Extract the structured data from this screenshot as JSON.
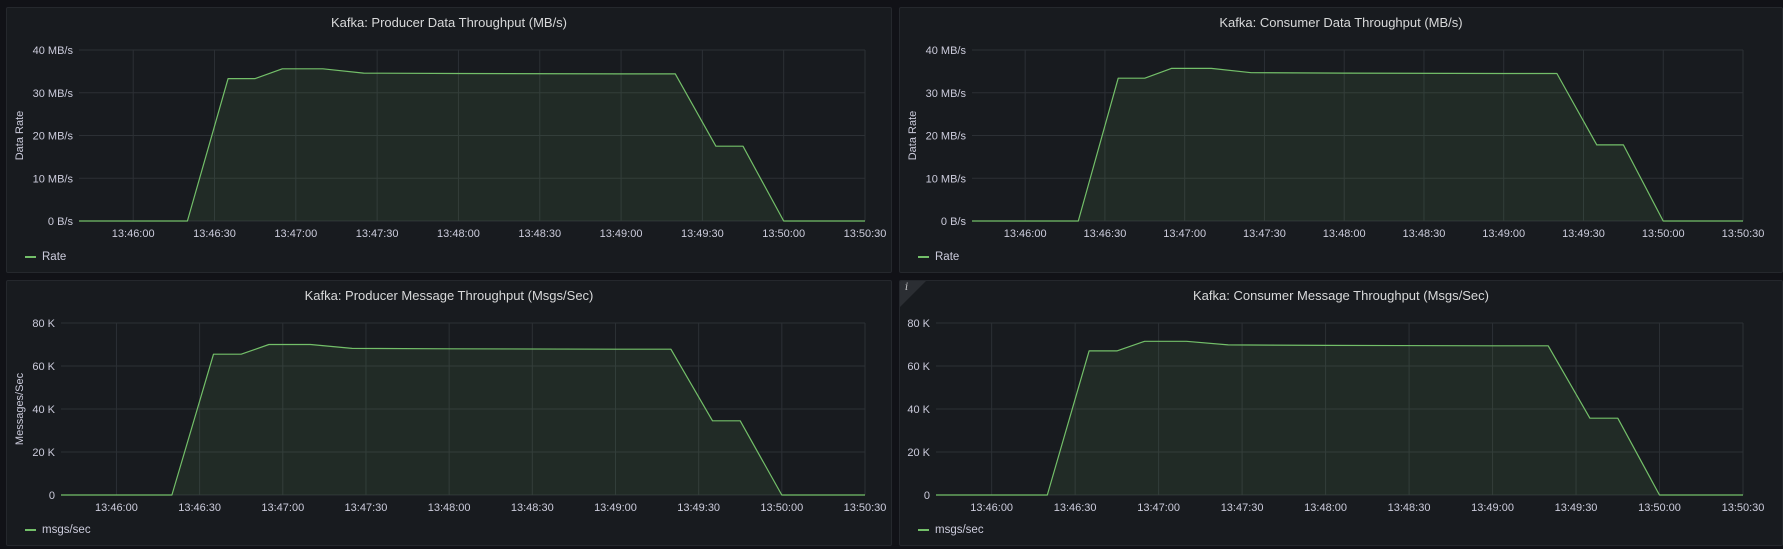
{
  "colors": {
    "background": "#111217",
    "panel": "#181b1f",
    "grid": "#2c3035",
    "series": "#73bf69"
  },
  "panels": [
    {
      "title": "Kafka: Producer Data Throughput (MB/s)",
      "legend": "Rate",
      "has_info": false
    },
    {
      "title": "Kafka: Consumer Data Throughput (MB/s)",
      "legend": "Rate",
      "has_info": false
    },
    {
      "title": "Kafka: Producer Message Throughput (Msgs/Sec)",
      "legend": "msgs/sec",
      "has_info": false
    },
    {
      "title": "Kafka: Consumer Message Throughput (Msgs/Sec)",
      "legend": "msgs/sec",
      "has_info": true,
      "info_icon": "info-icon"
    }
  ],
  "chart_data": [
    {
      "type": "area",
      "title": "Kafka: Producer Data Throughput (MB/s)",
      "ylabel": "Data Rate",
      "xlabel": "",
      "xlim": [
        "13:45:40",
        "13:50:30"
      ],
      "ylim": [
        0,
        40
      ],
      "y_unit": "MB/s",
      "yticks": [
        0,
        10,
        20,
        30,
        40
      ],
      "ytick_labels": [
        "0 B/s",
        "10 MB/s",
        "20 MB/s",
        "30 MB/s",
        "40 MB/s"
      ],
      "xticks": [
        "13:46:00",
        "13:46:30",
        "13:47:00",
        "13:47:30",
        "13:48:00",
        "13:48:30",
        "13:49:00",
        "13:49:30",
        "13:50:00",
        "13:50:30"
      ],
      "grid": true,
      "legend_position": "bottom-left",
      "series": [
        {
          "name": "Rate",
          "x": [
            "13:45:40",
            "13:46:00",
            "13:46:20",
            "13:46:35",
            "13:46:45",
            "13:46:55",
            "13:47:10",
            "13:47:25",
            "13:48:00",
            "13:49:00",
            "13:49:20",
            "13:49:35",
            "13:49:45",
            "13:50:00",
            "13:50:30"
          ],
          "values": [
            0,
            0,
            0,
            33.3,
            33.3,
            35.6,
            35.6,
            34.6,
            34.5,
            34.4,
            34.4,
            17.5,
            17.5,
            0,
            0
          ]
        }
      ]
    },
    {
      "type": "area",
      "title": "Kafka: Consumer Data Throughput (MB/s)",
      "ylabel": "Data Rate",
      "xlabel": "",
      "xlim": [
        "13:45:40",
        "13:50:30"
      ],
      "ylim": [
        0,
        40
      ],
      "y_unit": "MB/s",
      "yticks": [
        0,
        10,
        20,
        30,
        40
      ],
      "ytick_labels": [
        "0 B/s",
        "10 MB/s",
        "20 MB/s",
        "30 MB/s",
        "40 MB/s"
      ],
      "xticks": [
        "13:46:00",
        "13:46:30",
        "13:47:00",
        "13:47:30",
        "13:48:00",
        "13:48:30",
        "13:49:00",
        "13:49:30",
        "13:50:00",
        "13:50:30"
      ],
      "grid": true,
      "legend_position": "bottom-left",
      "series": [
        {
          "name": "Rate",
          "x": [
            "13:45:40",
            "13:46:00",
            "13:46:20",
            "13:46:35",
            "13:46:45",
            "13:46:55",
            "13:47:10",
            "13:47:25",
            "13:48:00",
            "13:49:00",
            "13:49:20",
            "13:49:35",
            "13:49:45",
            "13:50:00",
            "13:50:30"
          ],
          "values": [
            0,
            0,
            0,
            33.4,
            33.4,
            35.7,
            35.7,
            34.7,
            34.6,
            34.5,
            34.5,
            17.8,
            17.8,
            0,
            0
          ]
        }
      ]
    },
    {
      "type": "area",
      "title": "Kafka: Producer Message Throughput (Msgs/Sec)",
      "ylabel": "Messages/Sec",
      "xlabel": "",
      "xlim": [
        "13:45:40",
        "13:50:30"
      ],
      "ylim": [
        0,
        80000
      ],
      "yticks": [
        0,
        20000,
        40000,
        60000,
        80000
      ],
      "ytick_labels": [
        "0",
        "20 K",
        "40 K",
        "60 K",
        "80 K"
      ],
      "xticks": [
        "13:46:00",
        "13:46:30",
        "13:47:00",
        "13:47:30",
        "13:48:00",
        "13:48:30",
        "13:49:00",
        "13:49:30",
        "13:50:00",
        "13:50:30"
      ],
      "grid": true,
      "legend_position": "bottom-left",
      "series": [
        {
          "name": "msgs/sec",
          "x": [
            "13:45:40",
            "13:46:00",
            "13:46:20",
            "13:46:35",
            "13:46:45",
            "13:46:55",
            "13:47:10",
            "13:47:25",
            "13:48:00",
            "13:49:00",
            "13:49:20",
            "13:49:35",
            "13:49:45",
            "13:50:00",
            "13:50:30"
          ],
          "values": [
            0,
            0,
            0,
            65500,
            65500,
            70000,
            70000,
            68200,
            68000,
            67800,
            67800,
            34500,
            34500,
            0,
            0
          ]
        }
      ]
    },
    {
      "type": "area",
      "title": "Kafka: Consumer Message Throughput (Msgs/Sec)",
      "ylabel": "",
      "xlabel": "",
      "xlim": [
        "13:45:40",
        "13:50:30"
      ],
      "ylim": [
        0,
        80000
      ],
      "yticks": [
        0,
        20000,
        40000,
        60000,
        80000
      ],
      "ytick_labels": [
        "0",
        "20 K",
        "40 K",
        "60 K",
        "80 K"
      ],
      "xticks": [
        "13:46:00",
        "13:46:30",
        "13:47:00",
        "13:47:30",
        "13:48:00",
        "13:48:30",
        "13:49:00",
        "13:49:30",
        "13:50:00",
        "13:50:30"
      ],
      "grid": true,
      "legend_position": "bottom-left",
      "series": [
        {
          "name": "msgs/sec",
          "x": [
            "13:45:40",
            "13:46:00",
            "13:46:20",
            "13:46:35",
            "13:46:45",
            "13:46:55",
            "13:47:10",
            "13:47:25",
            "13:48:00",
            "13:49:00",
            "13:49:20",
            "13:49:35",
            "13:49:45",
            "13:50:00",
            "13:50:30"
          ],
          "values": [
            0,
            0,
            0,
            67000,
            67000,
            71500,
            71500,
            69800,
            69600,
            69400,
            69400,
            35700,
            35700,
            0,
            0
          ]
        }
      ]
    }
  ]
}
